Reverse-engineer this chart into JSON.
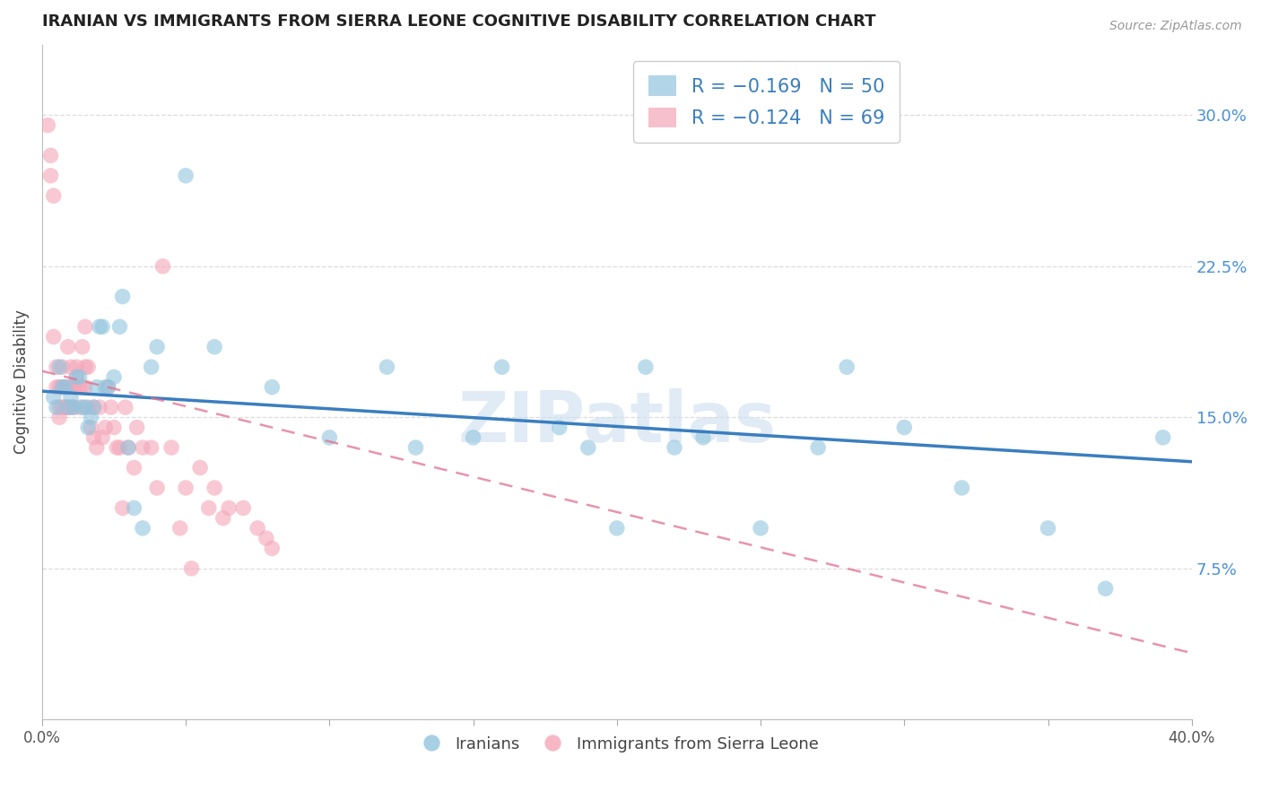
{
  "title": "IRANIAN VS IMMIGRANTS FROM SIERRA LEONE COGNITIVE DISABILITY CORRELATION CHART",
  "source": "Source: ZipAtlas.com",
  "ylabel": "Cognitive Disability",
  "right_yticks": [
    7.5,
    15.0,
    22.5,
    30.0
  ],
  "right_ytick_labels": [
    "7.5%",
    "15.0%",
    "22.5%",
    "30.0%"
  ],
  "xmin": 0.0,
  "xmax": 0.4,
  "ymin": 0.0,
  "ymax": 0.335,
  "legend_blue_r": "-0.169",
  "legend_blue_n": "50",
  "legend_pink_r": "-0.124",
  "legend_pink_n": "69",
  "legend_blue_label": "Iranians",
  "legend_pink_label": "Immigrants from Sierra Leone",
  "blue_color": "#92c5de",
  "pink_color": "#f4a6b8",
  "blue_line_color": "#3a7ebf",
  "pink_line_color": "#e07090",
  "watermark": "ZIPatlas",
  "blue_scatter_x": [
    0.004,
    0.005,
    0.006,
    0.007,
    0.008,
    0.009,
    0.01,
    0.011,
    0.012,
    0.013,
    0.014,
    0.015,
    0.016,
    0.017,
    0.018,
    0.019,
    0.02,
    0.021,
    0.022,
    0.023,
    0.025,
    0.027,
    0.028,
    0.03,
    0.032,
    0.035,
    0.038,
    0.04,
    0.05,
    0.06,
    0.08,
    0.1,
    0.12,
    0.13,
    0.15,
    0.16,
    0.18,
    0.19,
    0.2,
    0.21,
    0.22,
    0.23,
    0.25,
    0.27,
    0.28,
    0.3,
    0.32,
    0.35,
    0.37,
    0.39
  ],
  "blue_scatter_y": [
    0.16,
    0.155,
    0.175,
    0.165,
    0.165,
    0.155,
    0.16,
    0.155,
    0.17,
    0.17,
    0.155,
    0.155,
    0.145,
    0.15,
    0.155,
    0.165,
    0.195,
    0.195,
    0.165,
    0.165,
    0.17,
    0.195,
    0.21,
    0.135,
    0.105,
    0.095,
    0.175,
    0.185,
    0.27,
    0.185,
    0.165,
    0.14,
    0.175,
    0.135,
    0.14,
    0.175,
    0.145,
    0.135,
    0.095,
    0.175,
    0.135,
    0.14,
    0.095,
    0.135,
    0.175,
    0.145,
    0.115,
    0.095,
    0.065,
    0.14
  ],
  "pink_scatter_x": [
    0.002,
    0.003,
    0.003,
    0.004,
    0.004,
    0.005,
    0.005,
    0.006,
    0.006,
    0.006,
    0.007,
    0.007,
    0.007,
    0.008,
    0.008,
    0.008,
    0.009,
    0.009,
    0.009,
    0.01,
    0.01,
    0.01,
    0.011,
    0.011,
    0.012,
    0.012,
    0.013,
    0.013,
    0.014,
    0.014,
    0.015,
    0.015,
    0.015,
    0.016,
    0.016,
    0.017,
    0.018,
    0.018,
    0.019,
    0.02,
    0.021,
    0.022,
    0.023,
    0.024,
    0.025,
    0.026,
    0.027,
    0.028,
    0.029,
    0.03,
    0.032,
    0.033,
    0.035,
    0.038,
    0.04,
    0.042,
    0.045,
    0.048,
    0.05,
    0.052,
    0.055,
    0.058,
    0.06,
    0.063,
    0.065,
    0.07,
    0.075,
    0.078,
    0.08
  ],
  "pink_scatter_y": [
    0.295,
    0.28,
    0.27,
    0.26,
    0.19,
    0.165,
    0.175,
    0.165,
    0.155,
    0.15,
    0.165,
    0.155,
    0.175,
    0.165,
    0.155,
    0.155,
    0.165,
    0.155,
    0.185,
    0.165,
    0.155,
    0.175,
    0.165,
    0.155,
    0.17,
    0.175,
    0.165,
    0.155,
    0.165,
    0.185,
    0.165,
    0.175,
    0.195,
    0.155,
    0.175,
    0.145,
    0.14,
    0.155,
    0.135,
    0.155,
    0.14,
    0.145,
    0.165,
    0.155,
    0.145,
    0.135,
    0.135,
    0.105,
    0.155,
    0.135,
    0.125,
    0.145,
    0.135,
    0.135,
    0.115,
    0.225,
    0.135,
    0.095,
    0.115,
    0.075,
    0.125,
    0.105,
    0.115,
    0.1,
    0.105,
    0.105,
    0.095,
    0.09,
    0.085
  ],
  "blue_trendline_x": [
    0.0,
    0.4
  ],
  "blue_trendline_y": [
    0.163,
    0.128
  ],
  "pink_trendline_x": [
    0.0,
    0.4
  ],
  "pink_trendline_y": [
    0.173,
    0.033
  ]
}
